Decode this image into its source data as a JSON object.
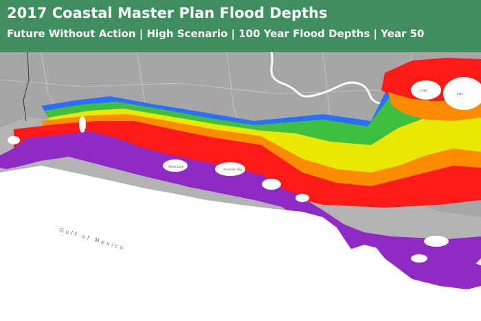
{
  "header": {
    "title": "2017 Coastal Master Plan Flood Depths",
    "subtitle": "Future Without Action | High Scenario | 100 Year Flood Depths | Year 50"
  },
  "map": {
    "water_body_label": "Gulf of Mexico",
    "colors": {
      "header_bg": "#3e8e5e",
      "land_gray": "#a6a6a6",
      "water": "#ffffff",
      "depth_purple": "#8e2bc6",
      "depth_red": "#ff1a1a",
      "depth_orange": "#ff8c00",
      "depth_yellow": "#e8e800",
      "depth_green": "#3fbf3f",
      "depth_blue": "#2a6fff"
    }
  }
}
